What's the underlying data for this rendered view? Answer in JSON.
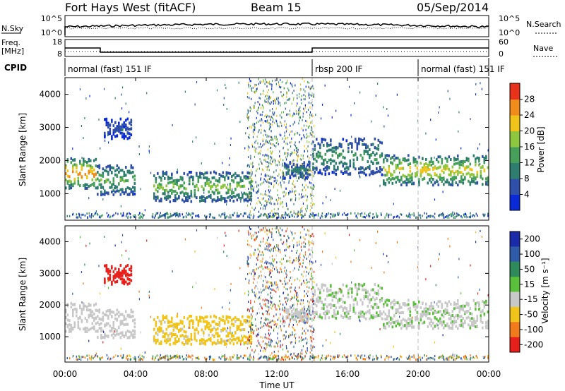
{
  "header": {
    "site": "Fort Hays West (fitACF)",
    "beam": "Beam 15",
    "date": "05/Sep/2014"
  },
  "nsky_panel": {
    "label": "N.Sky",
    "right_label": "N.Search",
    "y_ticks": [
      "10^5",
      "10^0"
    ],
    "right_ticks": [
      "10^5",
      "10^0"
    ]
  },
  "freq_panel": {
    "label_line1": "Freq.",
    "label_line2": "[MHz]",
    "right_label": "Nave",
    "y_ticks": [
      "18",
      "8"
    ],
    "right_ticks": [
      "60",
      "0"
    ]
  },
  "cpid_panel": {
    "label": "CPID",
    "modes": [
      {
        "name": "normal (fast) 151 IF",
        "start_h": 0,
        "end_h": 14
      },
      {
        "name": "rbsp 200 IF",
        "start_h": 14,
        "end_h": 20
      },
      {
        "name": "normal (fast) 151 IF",
        "start_h": 20,
        "end_h": 24
      }
    ]
  },
  "x_axis": {
    "label": "Time UT",
    "ticks": [
      "00:00",
      "04:00",
      "08:00",
      "12:00",
      "16:00",
      "20:00",
      "00:00"
    ],
    "range_h": [
      0,
      24
    ]
  },
  "power_panel": {
    "ylabel": "Slant Range [km]",
    "y_ticks": [
      "1000",
      "2000",
      "3000",
      "4000"
    ],
    "colorbar_label": "Power [dB]",
    "colorbar_ticks": [
      "4",
      "8",
      "12",
      "16",
      "20",
      "24",
      "28"
    ],
    "colors": [
      "#0a2ad8",
      "#2f4fa8",
      "#2e7d6f",
      "#46a05a",
      "#8ec63f",
      "#f0c419",
      "#f08c1c",
      "#e8321b"
    ]
  },
  "velocity_panel": {
    "ylabel": "Slant Range [km]",
    "y_ticks": [
      "1000",
      "2000",
      "3000",
      "4000"
    ],
    "colorbar_label": "Velocity [m s⁻¹]",
    "colorbar_ticks": [
      "200",
      "100",
      "50",
      "15",
      "-15",
      "-50",
      "-100",
      "-200"
    ],
    "colors": [
      "#1a2aa8",
      "#2f5aa8",
      "#2e8a5a",
      "#5abf3a",
      "#c8c8c8",
      "#f0c419",
      "#f07a1c",
      "#e8201b"
    ]
  },
  "chart_data": {
    "type": "heatmap",
    "x_unit": "hours UT",
    "y_unit": "km",
    "ylim": [
      200,
      4500
    ],
    "xlim": [
      0,
      24
    ],
    "freq_mhz": [
      {
        "start_h": 0,
        "end_h": 2,
        "value": 13.0
      },
      {
        "start_h": 2,
        "end_h": 14,
        "value": 10.5
      },
      {
        "start_h": 14,
        "end_h": 24,
        "value": 13.0
      }
    ],
    "echo_regions": [
      {
        "start_h": 0.0,
        "end_h": 1.8,
        "range_lo": 1200,
        "range_hi": 2100,
        "power_db": 24,
        "velocity": -10
      },
      {
        "start_h": 1.8,
        "end_h": 4.0,
        "range_lo": 1000,
        "range_hi": 1900,
        "power_db": 14,
        "velocity": -10
      },
      {
        "start_h": 2.2,
        "end_h": 3.8,
        "range_lo": 2700,
        "range_hi": 3300,
        "power_db": 6,
        "velocity": -180
      },
      {
        "start_h": 5.0,
        "end_h": 10.5,
        "range_lo": 800,
        "range_hi": 1700,
        "power_db": 16,
        "velocity": -40
      },
      {
        "start_h": 12.3,
        "end_h": 13.8,
        "range_lo": 1500,
        "range_hi": 2000,
        "power_db": 10,
        "velocity": -10
      },
      {
        "start_h": 14.0,
        "end_h": 18.0,
        "range_lo": 1600,
        "range_hi": 2700,
        "power_db": 12,
        "velocity": -5
      },
      {
        "start_h": 18.0,
        "end_h": 24.0,
        "range_lo": 1300,
        "range_hi": 2200,
        "power_db": 20,
        "velocity": -5
      }
    ]
  }
}
